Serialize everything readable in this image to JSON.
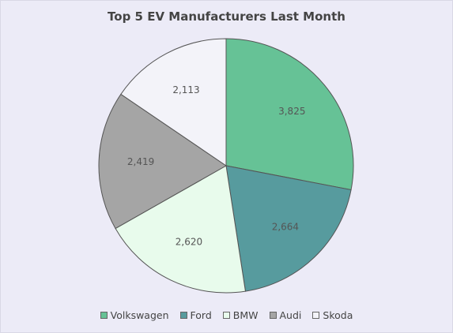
{
  "chart_data": {
    "type": "pie",
    "title": "Top 5 EV Manufacturers Last Month",
    "categories": [
      "Volkswagen",
      "Ford",
      "BMW",
      "Audi",
      "Skoda"
    ],
    "values": [
      3825,
      2664,
      2620,
      2419,
      2113
    ],
    "value_labels": [
      "3,825",
      "2,664",
      "2,620",
      "2,419",
      "2,113"
    ],
    "colors": [
      "#66c296",
      "#579b9e",
      "#e8fbec",
      "#a5a5a5",
      "#f3f3f9"
    ],
    "start_angle_deg": 0,
    "direction": "clockwise",
    "legend_position": "bottom"
  }
}
